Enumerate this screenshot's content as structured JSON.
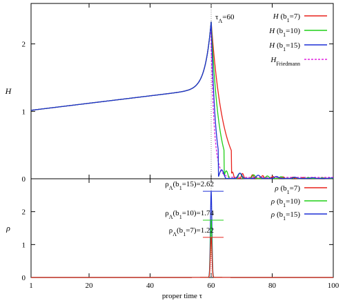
{
  "colors": {
    "b7": "#e8201a",
    "b10": "#1fcf16",
    "b15": "#1c2fd6",
    "friedmann": "#e020e0",
    "refline": "#888888"
  },
  "chart_data": [
    {
      "type": "line",
      "ylabel": "H",
      "xlim": [
        1,
        100
      ],
      "ylim": [
        0,
        2.6
      ],
      "x_ticks": [
        1,
        20,
        40,
        60,
        80,
        100
      ],
      "y_ticks": [
        0,
        1,
        2
      ],
      "x_tick_labels": [
        "1",
        "20",
        "40",
        "60",
        "80",
        "100"
      ],
      "y_tick_labels": [
        "0",
        "1",
        "2"
      ],
      "annotation": "τ_Λ=60",
      "annotation_x": 60,
      "legend_position": "top-right",
      "legend": {
        "b7": {
          "base": "H",
          "cond": "(b",
          "sub": "1",
          "tail": "=7)"
        },
        "b10": {
          "base": "H",
          "cond": "(b",
          "sub": "1",
          "tail": "=10)"
        },
        "b15": {
          "base": "H",
          "cond": "(b",
          "sub": "1",
          "tail": "=15)"
        },
        "friedmann": {
          "base": "H",
          "sub": "Friedmann"
        }
      },
      "series": [
        {
          "key": "b7",
          "peak": 2.33,
          "decay_end": 67,
          "omega": 1.9
        },
        {
          "key": "b10",
          "peak": 2.33,
          "decay_end": 64.5,
          "omega": 1.4
        },
        {
          "key": "b15",
          "peak": 2.33,
          "decay_end": 62.5,
          "omega": 1.05
        },
        {
          "key": "friedmann",
          "peak": 1.9,
          "decay_end": 61,
          "dashed": true
        }
      ],
      "base_curve": {
        "start": 1.01,
        "near_peak": 2.33,
        "tau_peak": 60
      }
    },
    {
      "type": "line",
      "xlabel": "proper time τ",
      "ylabel": "ρ",
      "xlim": [
        1,
        100
      ],
      "ylim": [
        0,
        3
      ],
      "x_ticks": [
        1,
        20,
        40,
        60,
        80,
        100
      ],
      "y_ticks": [
        0,
        1,
        2
      ],
      "x_tick_labels": [
        "1",
        "20",
        "40",
        "60",
        "80",
        "100"
      ],
      "y_tick_labels": [
        "0",
        "1",
        "2"
      ],
      "legend_position": "top-right",
      "legend": {
        "b7": {
          "base": "ρ",
          "cond": "(b",
          "sub": "1",
          "tail": "=7)"
        },
        "b10": {
          "base": "ρ",
          "cond": "(b",
          "sub": "1",
          "tail": "=10)"
        },
        "b15": {
          "base": "ρ",
          "cond": "(b",
          "sub": "1",
          "tail": "=15)"
        }
      },
      "series": [
        {
          "key": "b15",
          "peak": 2.62
        },
        {
          "key": "b10",
          "peak": 1.74
        },
        {
          "key": "b7",
          "peak": 1.22
        }
      ],
      "annotations": {
        "b15": {
          "head": "ρ",
          "headsub": "Λ",
          "cond": "(b",
          "sub": "1",
          "tail": "=15)=2.62",
          "y": 2.62
        },
        "b10": {
          "head": "ρ",
          "headsub": "Λ",
          "cond": "(b",
          "sub": "1",
          "tail": "=10)=1.74",
          "y": 1.74
        },
        "b7": {
          "head": "ρ",
          "headsub": "Λ",
          "cond": "(b",
          "sub": "1",
          "tail": "=7)=1.22",
          "y": 1.22
        }
      }
    }
  ]
}
